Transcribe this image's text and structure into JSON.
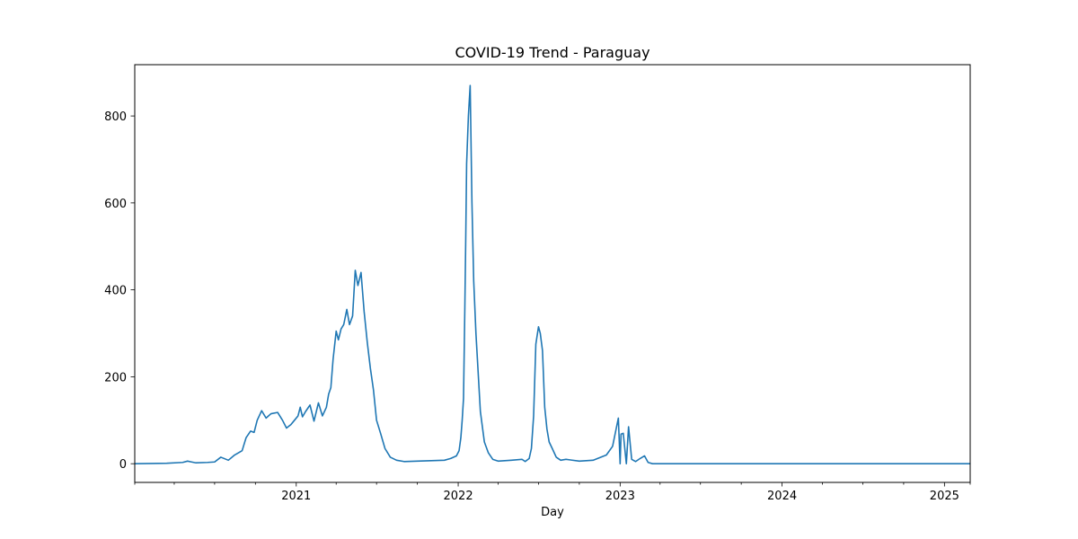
{
  "chart_data": {
    "type": "line",
    "title": "COVID-19 Trend - Paraguay",
    "xlabel": "Day",
    "ylabel": "",
    "x_range": [
      "2020-01-03",
      "2025-02-28"
    ],
    "ylim": [
      -43,
      918
    ],
    "x_major_ticks": [
      {
        "date": "2021-01-01",
        "label": "2021"
      },
      {
        "date": "2022-01-01",
        "label": "2022"
      },
      {
        "date": "2023-01-01",
        "label": "2023"
      },
      {
        "date": "2024-01-01",
        "label": "2024"
      },
      {
        "date": "2025-01-01",
        "label": "2025"
      }
    ],
    "x_minor_ticks": [
      "2020-01-03",
      "2020-04-01",
      "2020-07-01",
      "2020-10-01",
      "2021-04-01",
      "2021-07-01",
      "2021-10-01",
      "2022-04-01",
      "2022-07-01",
      "2022-10-01",
      "2023-04-01",
      "2023-07-01",
      "2023-10-01",
      "2024-04-01",
      "2024-07-01",
      "2024-10-01",
      "2025-02-28"
    ],
    "y_ticks": [
      0,
      200,
      400,
      600,
      800
    ],
    "grid": false,
    "legend": "none",
    "colors": {
      "line": "#1f77b4"
    },
    "series": [
      {
        "x": [
          "2020-01-03",
          "2020-03-15",
          "2020-04-20",
          "2020-05-01",
          "2020-05-10",
          "2020-05-20",
          "2020-06-15",
          "2020-07-01",
          "2020-07-15",
          "2020-08-01",
          "2020-08-15",
          "2020-09-01",
          "2020-09-10",
          "2020-09-20",
          "2020-09-28",
          "2020-10-05",
          "2020-10-15",
          "2020-10-25",
          "2020-11-05",
          "2020-11-20",
          "2020-12-01",
          "2020-12-10",
          "2020-12-20",
          "2020-12-28",
          "2021-01-05",
          "2021-01-10",
          "2021-01-15",
          "2021-01-22",
          "2021-02-01",
          "2021-02-10",
          "2021-02-20",
          "2021-03-01",
          "2021-03-10",
          "2021-03-15",
          "2021-03-20",
          "2021-03-25",
          "2021-04-01",
          "2021-04-06",
          "2021-04-12",
          "2021-04-18",
          "2021-04-25",
          "2021-05-01",
          "2021-05-08",
          "2021-05-14",
          "2021-05-20",
          "2021-05-27",
          "2021-06-03",
          "2021-06-10",
          "2021-06-17",
          "2021-06-24",
          "2021-07-01",
          "2021-07-10",
          "2021-07-20",
          "2021-08-01",
          "2021-08-15",
          "2021-09-01",
          "2021-10-01",
          "2021-11-01",
          "2021-12-01",
          "2021-12-15",
          "2021-12-28",
          "2022-01-03",
          "2022-01-07",
          "2022-01-10",
          "2022-01-13",
          "2022-01-16",
          "2022-01-18",
          "2022-01-20",
          "2022-01-24",
          "2022-01-28",
          "2022-02-01",
          "2022-02-05",
          "2022-02-10",
          "2022-02-20",
          "2022-03-01",
          "2022-03-10",
          "2022-03-20",
          "2022-04-01",
          "2022-05-01",
          "2022-05-25",
          "2022-06-01",
          "2022-06-10",
          "2022-06-15",
          "2022-06-20",
          "2022-06-25",
          "2022-07-01",
          "2022-07-05",
          "2022-07-10",
          "2022-07-15",
          "2022-07-20",
          "2022-07-25",
          "2022-08-01",
          "2022-08-10",
          "2022-08-20",
          "2022-09-01",
          "2022-10-01",
          "2022-11-01",
          "2022-12-01",
          "2022-12-15",
          "2022-12-28",
          "2023-01-01",
          "2023-01-03",
          "2023-01-08",
          "2023-01-15",
          "2023-01-20",
          "2023-01-27",
          "2023-02-05",
          "2023-02-15",
          "2023-02-25",
          "2023-03-05",
          "2023-03-15",
          "2023-04-01",
          "2024-01-01",
          "2025-02-28"
        ],
        "y": [
          0,
          1,
          3,
          6,
          4,
          2,
          3,
          4,
          15,
          8,
          20,
          30,
          60,
          75,
          72,
          100,
          122,
          105,
          115,
          118,
          100,
          82,
          90,
          100,
          110,
          130,
          108,
          120,
          135,
          98,
          140,
          110,
          130,
          160,
          175,
          240,
          305,
          285,
          310,
          320,
          355,
          320,
          340,
          445,
          410,
          440,
          350,
          280,
          220,
          170,
          100,
          70,
          35,
          15,
          8,
          5,
          6,
          7,
          8,
          12,
          18,
          30,
          60,
          100,
          150,
          360,
          515,
          690,
          800,
          870,
          600,
          420,
          300,
          120,
          50,
          25,
          10,
          6,
          8,
          10,
          5,
          12,
          35,
          110,
          275,
          315,
          300,
          260,
          130,
          80,
          50,
          35,
          15,
          8,
          10,
          6,
          8,
          20,
          40,
          105,
          0,
          68,
          70,
          0,
          85,
          10,
          5,
          12,
          18,
          3,
          0,
          0,
          0,
          0
        ]
      }
    ]
  }
}
